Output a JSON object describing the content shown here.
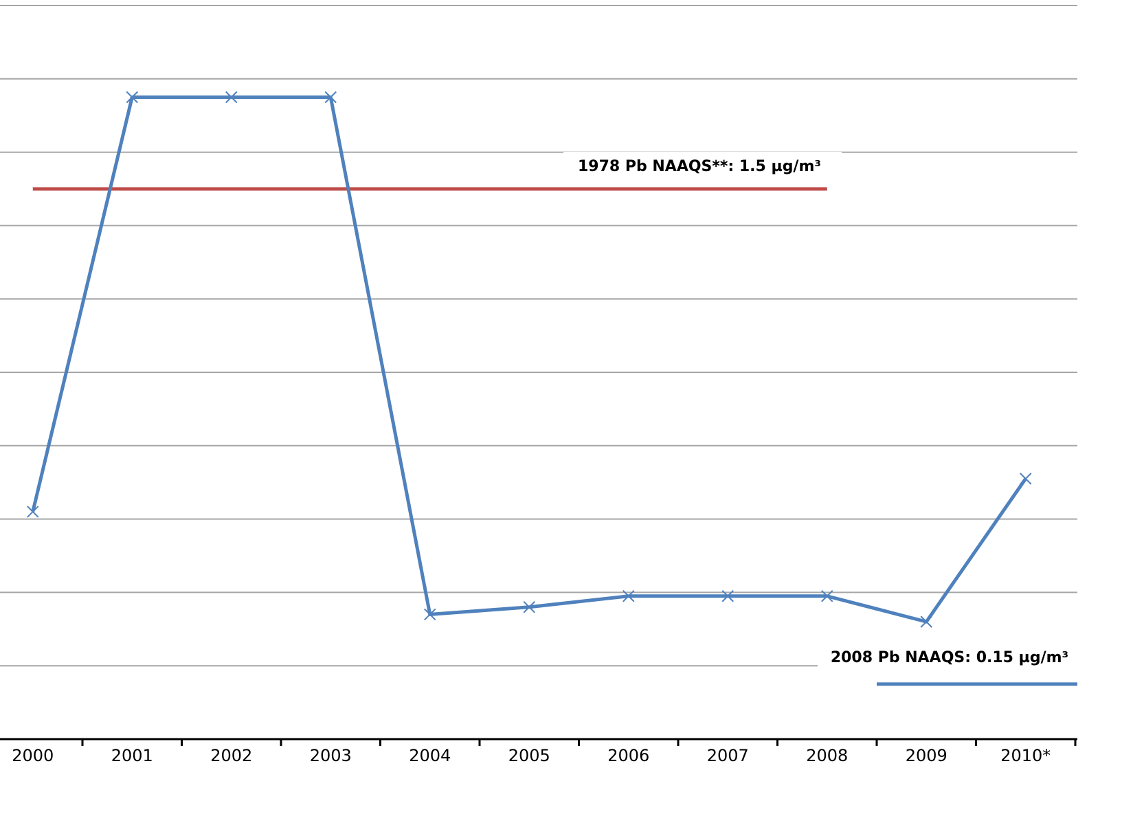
{
  "chart_data": {
    "type": "line",
    "categories": [
      "2000",
      "2001",
      "2002",
      "2003",
      "2004",
      "2005",
      "2006",
      "2007",
      "2008",
      "2009",
      "2010*"
    ],
    "series": [
      {
        "color": "#4f81bd",
        "values": [
          0.62,
          1.75,
          1.75,
          1.75,
          0.34,
          0.36,
          0.39,
          0.39,
          0.39,
          0.32,
          0.71
        ]
      }
    ],
    "ylim": [
      0,
      2.0
    ],
    "yticks": [
      0.2,
      0.4,
      0.6,
      0.8,
      1.0,
      1.2,
      1.4,
      1.6,
      1.8,
      2.0
    ],
    "grid": true,
    "annotations": [
      {
        "text": "1978 Pb NAAQS**: 1.5 µg/m³",
        "value": 1.5,
        "color": "#be4b48"
      },
      {
        "text": "2008 Pb NAAQS: 0.15 µg/m³",
        "value": 0.15,
        "color": "#4f81bd"
      }
    ]
  }
}
